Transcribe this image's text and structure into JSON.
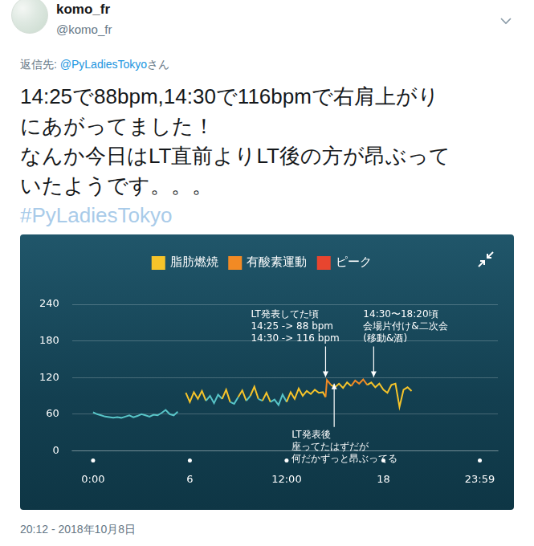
{
  "tweet": {
    "name": "komo_fr",
    "handle": "@komo_fr",
    "reply_label": "返信先: ",
    "reply_to": "@PyLadiesTokyo",
    "reply_suffix": "さん",
    "lines": [
      "14:25で88bpm,14:30で116bpmで右肩上がり",
      "にあがってました！",
      "なんか今日はLT直前よりLT後の方が昂ぶって",
      "いたようです。。。"
    ],
    "hashtag": "#PyLadiesTokyo",
    "timestamp": "20:12 - 2018年10月8日"
  },
  "chart_data": {
    "type": "line",
    "x": [
      0,
      0.25,
      0.5,
      0.75,
      1,
      1.25,
      1.5,
      1.75,
      2,
      2.25,
      2.5,
      2.75,
      3,
      3.25,
      3.5,
      3.75,
      4,
      4.25,
      4.5,
      4.75,
      5,
      5.25,
      5.5,
      5.75,
      6,
      6.25,
      6.5,
      6.75,
      7,
      7.25,
      7.5,
      7.75,
      8,
      8.25,
      8.5,
      8.75,
      9,
      9.25,
      9.5,
      9.75,
      10,
      10.25,
      10.5,
      10.75,
      11,
      11.25,
      11.5,
      11.75,
      12,
      12.25,
      12.5,
      12.75,
      13,
      13.25,
      13.5,
      13.75,
      14,
      14.25,
      14.4167,
      14.5,
      14.75,
      15,
      15.25,
      15.5,
      15.75,
      16,
      16.25,
      16.5,
      16.75,
      17,
      17.25,
      17.5,
      17.75,
      18,
      18.25,
      18.5,
      18.75,
      19,
      19.25,
      19.5,
      19.75
    ],
    "series": [
      {
        "color": "#57c4c7",
        "values": [
          63,
          60,
          58,
          56,
          55,
          54,
          55,
          54,
          56,
          58,
          55,
          57,
          60,
          58,
          56,
          59,
          58,
          62,
          67,
          60,
          58,
          64,
          null,
          95,
          80,
          96,
          85,
          98,
          82,
          90,
          78,
          92,
          85,
          100,
          80,
          77,
          88,
          99,
          82,
          90,
          105,
          85,
          82,
          95,
          80,
          84,
          75,
          92,
          80,
          96,
          85,
          102,
          90,
          98,
          93,
          100,
          95,
          96,
          88,
          116,
          108,
          104,
          110,
          103,
          112,
          106,
          115,
          110,
          117,
          108,
          112,
          104,
          110,
          100,
          95,
          108,
          110,
          72,
          100,
          104,
          98
        ]
      },
      {
        "name": "脂肪燃焼",
        "color": "#f6c42a",
        "values": [
          null,
          null,
          null,
          null,
          null,
          null,
          null,
          null,
          null,
          null,
          null,
          null,
          null,
          null,
          null,
          null,
          null,
          null,
          null,
          null,
          null,
          null,
          null,
          95,
          null,
          96,
          null,
          98,
          null,
          null,
          null,
          null,
          null,
          100,
          null,
          null,
          null,
          99,
          null,
          null,
          105,
          null,
          null,
          95,
          null,
          null,
          null,
          null,
          null,
          96,
          null,
          102,
          null,
          98,
          null,
          100,
          95,
          96,
          null,
          null,
          108,
          104,
          110,
          103,
          112,
          106,
          null,
          110,
          null,
          108,
          112,
          104,
          110,
          100,
          95,
          108,
          110,
          null,
          100,
          104,
          98
        ]
      },
      {
        "name": "有酸素運動",
        "color": "#f28a24",
        "values": [
          null,
          null,
          null,
          null,
          null,
          null,
          null,
          null,
          null,
          null,
          null,
          null,
          null,
          null,
          null,
          null,
          null,
          null,
          null,
          null,
          null,
          null,
          null,
          null,
          null,
          null,
          null,
          null,
          null,
          null,
          null,
          null,
          null,
          null,
          null,
          null,
          null,
          null,
          null,
          null,
          null,
          null,
          null,
          null,
          null,
          null,
          null,
          null,
          null,
          null,
          null,
          null,
          null,
          null,
          null,
          null,
          null,
          null,
          null,
          116,
          null,
          null,
          null,
          null,
          null,
          null,
          115,
          null,
          117,
          null,
          null,
          null,
          null,
          null,
          null,
          null,
          null,
          null,
          null,
          null,
          null
        ]
      },
      {
        "name": "ピーク",
        "color": "#e8452f",
        "values": [
          null,
          null,
          null,
          null,
          null,
          null,
          null,
          null,
          null,
          null,
          null,
          null,
          null,
          null,
          null,
          null,
          null,
          null,
          null,
          null,
          null,
          null,
          null,
          null,
          null,
          null,
          null,
          null,
          null,
          null,
          null,
          null,
          null,
          null,
          null,
          null,
          null,
          null,
          null,
          null,
          null,
          null,
          null,
          null,
          null,
          null,
          null,
          null,
          null,
          null,
          null,
          null,
          null,
          null,
          null,
          null,
          null,
          null,
          null,
          null,
          null,
          null,
          null,
          null,
          null,
          null,
          null,
          null,
          null,
          null,
          null,
          null,
          null,
          null,
          null,
          null,
          null,
          null,
          null,
          null,
          null
        ]
      }
    ],
    "xlim": [
      -1.3,
      25.1
    ],
    "xticks": [
      {
        "value": 0,
        "label": "0:00"
      },
      6,
      {
        "value": 12,
        "label": "12:00"
      },
      18,
      {
        "value": 23.98,
        "label": "23:59"
      }
    ],
    "ylim": [
      0,
      240
    ],
    "yticks": [
      0,
      60,
      120,
      180,
      240
    ],
    "grid": true,
    "legend": "top",
    "annotations": [
      {
        "x": 14.4167,
        "y": 121,
        "text": [
          "LT発表してた頃",
          "14:25 -> 88 bpm",
          "14:30 -> 116 bpm"
        ]
      },
      {
        "x": 17.4,
        "y": 121,
        "text": [
          "14:30〜18:20頃",
          "会場片付け&二次会",
          "(移動&酒)"
        ]
      },
      {
        "x": 14.95,
        "y": 110,
        "text": [
          "LT発表後",
          "座ってたはずだが",
          "何だかずっと昂ぶってる"
        ]
      }
    ]
  }
}
